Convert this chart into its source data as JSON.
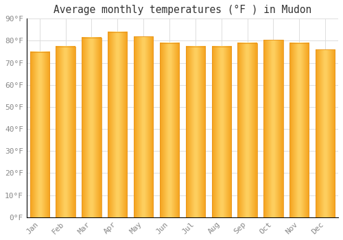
{
  "title": "Average monthly temperatures (°F ) in Mudon",
  "months": [
    "Jan",
    "Feb",
    "Mar",
    "Apr",
    "May",
    "Jun",
    "Jul",
    "Aug",
    "Sep",
    "Oct",
    "Nov",
    "Dec"
  ],
  "values": [
    75,
    77.5,
    81.5,
    84,
    82,
    79,
    77.5,
    77.5,
    79,
    80.5,
    79,
    76
  ],
  "bar_color_left": "#F5A623",
  "bar_color_center": "#FFD466",
  "bar_color_right": "#F5A623",
  "ylim": [
    0,
    90
  ],
  "yticks": [
    0,
    10,
    20,
    30,
    40,
    50,
    60,
    70,
    80,
    90
  ],
  "ytick_labels": [
    "0°F",
    "10°F",
    "20°F",
    "30°F",
    "40°F",
    "50°F",
    "60°F",
    "70°F",
    "80°F",
    "90°F"
  ],
  "background_color": "#FFFFFF",
  "grid_color": "#DDDDDD",
  "title_fontsize": 10.5,
  "tick_fontsize": 8,
  "font_family": "monospace",
  "bar_width": 0.75
}
